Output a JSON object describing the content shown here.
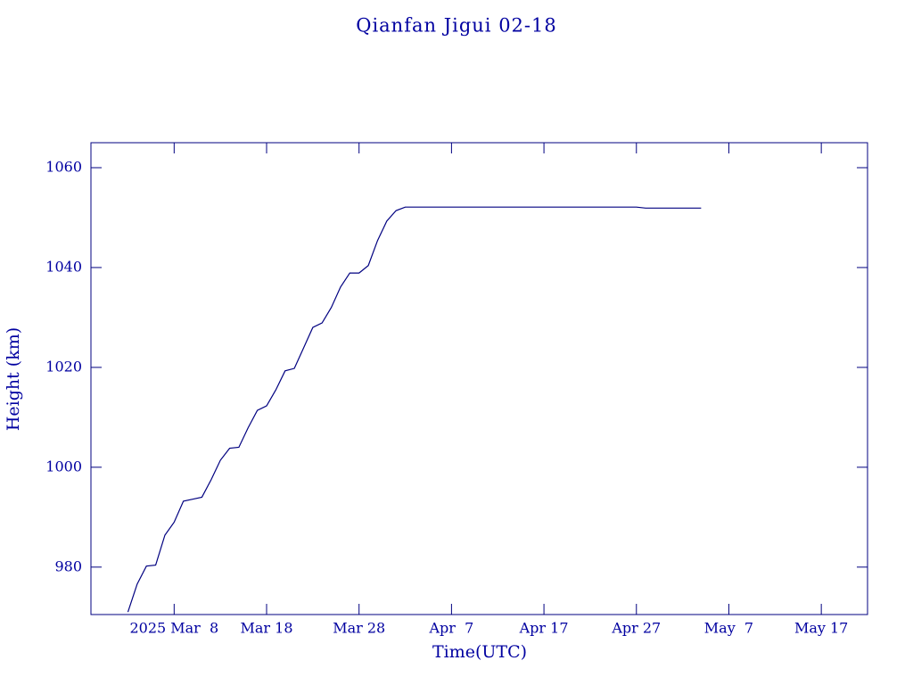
{
  "chart_data": {
    "type": "line",
    "title": "Qianfan Jigui 02-18",
    "x_label": "Time(UTC)",
    "y_label": "Height (km)",
    "color": "#000080",
    "x": [
      "2025-03-03",
      "2025-03-04",
      "2025-03-05",
      "2025-03-06",
      "2025-03-07",
      "2025-03-08",
      "2025-03-09",
      "2025-03-10",
      "2025-03-11",
      "2025-03-12",
      "2025-03-13",
      "2025-03-14",
      "2025-03-15",
      "2025-03-16",
      "2025-03-17",
      "2025-03-18",
      "2025-03-19",
      "2025-03-20",
      "2025-03-21",
      "2025-03-22",
      "2025-03-23",
      "2025-03-24",
      "2025-03-25",
      "2025-03-26",
      "2025-03-27",
      "2025-03-28",
      "2025-03-29",
      "2025-03-30",
      "2025-03-31",
      "2025-04-01",
      "2025-04-02",
      "2025-04-27",
      "2025-04-28",
      "2025-05-04"
    ],
    "values": [
      971,
      976.6,
      980.2,
      980.4,
      986.4,
      989,
      993.2,
      993.6,
      994,
      997.5,
      1001.4,
      1003.8,
      1004,
      1007.9,
      1011.4,
      1012.3,
      1015.5,
      1019.3,
      1019.8,
      1023.9,
      1028,
      1028.9,
      1032,
      1036.1,
      1038.9,
      1038.9,
      1040.4,
      1045.4,
      1049.3,
      1051.4,
      1052.1,
      1052.1,
      1051.9,
      1051.9
    ],
    "xlim": [
      "2025-02-27",
      "2025-05-22"
    ],
    "xticks": [
      {
        "value": "2025-03-08",
        "label": "2025 Mar  8"
      },
      {
        "value": "2025-03-18",
        "label": "Mar 18"
      },
      {
        "value": "2025-03-28",
        "label": "Mar 28"
      },
      {
        "value": "2025-04-07",
        "label": "Apr  7"
      },
      {
        "value": "2025-04-17",
        "label": "Apr 17"
      },
      {
        "value": "2025-04-27",
        "label": "Apr 27"
      },
      {
        "value": "2025-05-07",
        "label": "May  7"
      },
      {
        "value": "2025-05-17",
        "label": "May 17"
      }
    ],
    "ylim": [
      970.5,
      1065
    ],
    "yticks": [
      980,
      1000,
      1020,
      1040,
      1060
    ]
  }
}
